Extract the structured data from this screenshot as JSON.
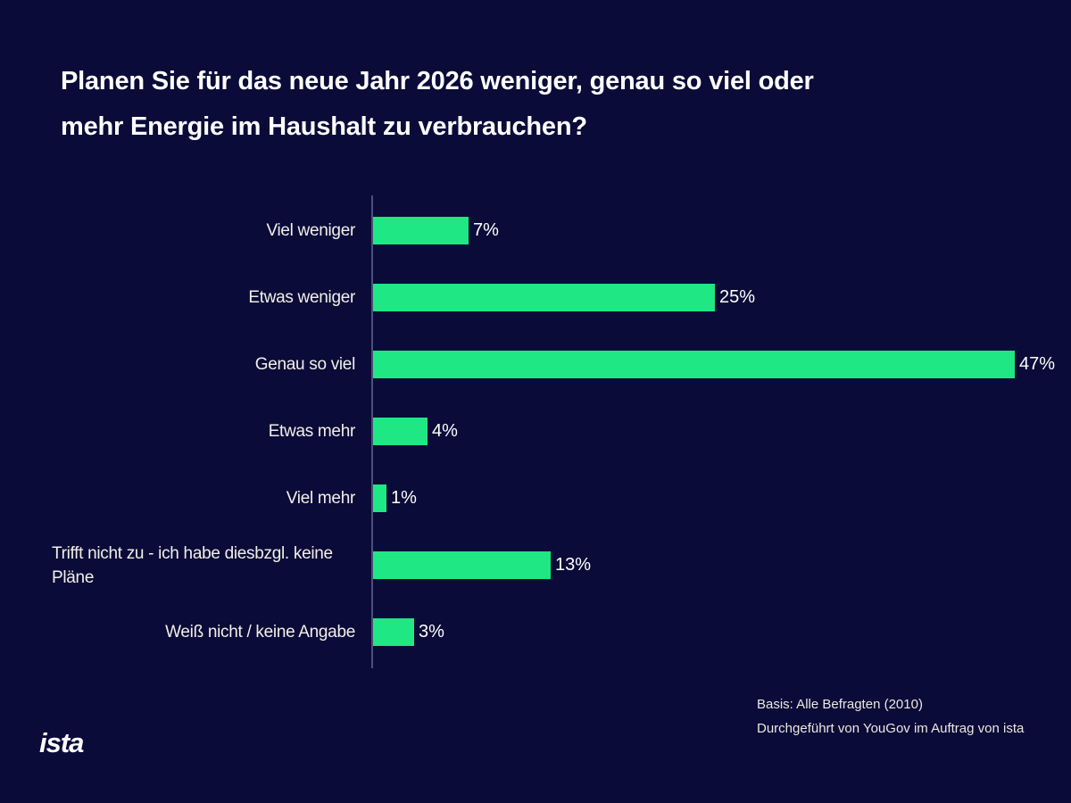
{
  "title": {
    "lines": [
      "Planen Sie für das neue Jahr 2026 weniger, genau so viel oder",
      "mehr Energie im Haushalt zu verbrauchen?"
    ]
  },
  "chart_data": {
    "type": "bar",
    "orientation": "horizontal",
    "title": "Planen Sie für das neue Jahr 2026 weniger, genau so viel oder mehr Energie im Haushalt zu verbrauchen?",
    "categories": [
      "Viel weniger",
      "Etwas weniger",
      "Genau so viel",
      "Etwas mehr",
      "Viel mehr",
      "Trifft nicht zu - ich habe diesbzgl. keine\nPläne",
      "Weiß nicht / keine Angabe"
    ],
    "values": [
      7,
      25,
      47,
      4,
      1,
      13,
      3
    ],
    "value_labels": [
      "7%",
      "25%",
      "47%",
      "4%",
      "1%",
      "13%",
      "3%"
    ],
    "xlabel": "",
    "ylabel": "",
    "xlim": [
      0,
      50
    ],
    "grid": false,
    "legend": "none",
    "bar_color": "#1ee783",
    "background_color": "#0a0b38",
    "axis_color": "#4a5175"
  },
  "footer": {
    "basis": "Basis: Alle Befragten (2010)",
    "source": "Durchgeführt von YouGov im Auftrag von ista"
  },
  "logo": {
    "text": "ista"
  }
}
